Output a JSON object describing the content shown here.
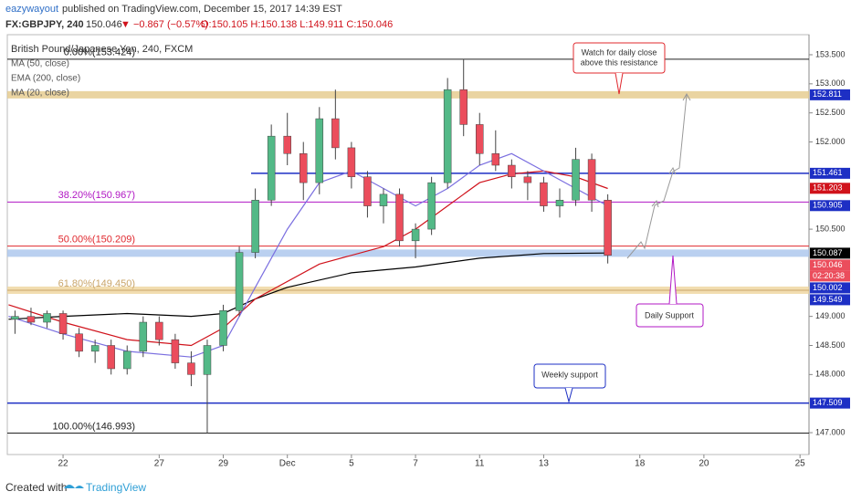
{
  "header": {
    "user": "eazywayout",
    "published": " published on TradingView.com, December 15, 2017 14:39 EST",
    "symbol": "FX:GBPJPY, 240",
    "last": "150.046",
    "change": "▼ −0.867 (−0.57%)",
    "ohlc": "O:150.105 H:150.138 L:149.911 C:150.046"
  },
  "legend": [
    "British Pound/Japanese Yen, 240, FXCM",
    "MA (50, close)",
    "EMA (200, close)",
    "MA (20, close)"
  ],
  "callouts": [
    "Watch for daily close",
    "above this resistance",
    "Daily Support",
    "Weekly support"
  ],
  "footer": {
    "created": "Created with",
    "brand": "TradingView"
  },
  "chart_data": {
    "type": "candlestick",
    "xlim": [
      -1.74,
      23.28
    ],
    "xticks": [
      {
        "value": 0,
        "label": "22"
      },
      {
        "value": 3,
        "label": "27"
      },
      {
        "value": 5,
        "label": "29"
      },
      {
        "value": 7,
        "label": "Dec"
      },
      {
        "value": 9,
        "label": "5"
      },
      {
        "value": 11,
        "label": "7"
      },
      {
        "value": 13,
        "label": "11"
      },
      {
        "value": 15,
        "label": "13"
      },
      {
        "value": 18,
        "label": "18"
      },
      {
        "value": 20,
        "label": "20"
      },
      {
        "value": 23,
        "label": "25"
      }
    ],
    "ylim": [
      146.624,
      153.845
    ],
    "yticks": [
      {
        "value": 153.5,
        "label": "153.500"
      },
      {
        "value": 153,
        "label": "153.000"
      },
      {
        "value": 152.5,
        "label": "152.500"
      },
      {
        "value": 152,
        "label": "152.000"
      },
      {
        "value": 150.5,
        "label": "150.500"
      },
      {
        "value": 149,
        "label": "149.000"
      },
      {
        "value": 148.5,
        "label": "148.500"
      },
      {
        "value": 148,
        "label": "148.000"
      },
      {
        "value": 147,
        "label": "147.000"
      }
    ],
    "up_color": "#53b987",
    "down_color": "#eb4d5c",
    "x": [
      -1.5,
      -1,
      -0.5,
      0,
      0.5,
      1,
      1.5,
      2,
      2.5,
      3,
      3.5,
      4,
      4.5,
      5,
      5.5,
      6,
      6.5,
      7,
      7.5,
      8,
      8.5,
      9,
      9.5,
      10,
      10.5,
      11,
      11.5,
      12,
      12.5,
      13,
      13.5,
      14,
      14.5,
      15,
      15.5,
      16,
      16.5,
      17
    ],
    "open": [
      148.95,
      149.0,
      148.9,
      149.05,
      148.7,
      148.4,
      148.5,
      148.1,
      148.4,
      148.9,
      148.6,
      148.2,
      148.0,
      148.5,
      149.1,
      150.1,
      151.0,
      152.1,
      151.8,
      151.3,
      152.4,
      151.9,
      151.4,
      150.9,
      151.1,
      150.3,
      150.5,
      151.3,
      152.9,
      152.3,
      151.8,
      151.6,
      151.4,
      151.3,
      150.9,
      151.0,
      151.7,
      151.0
    ],
    "high": [
      149.1,
      149.15,
      149.1,
      149.1,
      148.8,
      148.6,
      148.6,
      148.5,
      149.0,
      149.0,
      148.7,
      148.4,
      148.6,
      149.2,
      150.2,
      151.2,
      152.3,
      152.5,
      152.0,
      152.6,
      152.9,
      152.0,
      151.5,
      151.2,
      151.2,
      150.6,
      151.4,
      153.1,
      153.424,
      152.5,
      152.2,
      151.7,
      151.5,
      151.4,
      151.2,
      151.9,
      151.8,
      151.1
    ],
    "low": [
      148.7,
      148.85,
      148.8,
      148.6,
      148.3,
      148.2,
      148.0,
      148.0,
      148.3,
      148.5,
      148.1,
      147.8,
      146.99,
      148.4,
      149.0,
      150.0,
      150.9,
      151.6,
      151.0,
      151.1,
      151.7,
      151.2,
      150.7,
      150.6,
      150.2,
      150.0,
      150.4,
      151.2,
      152.1,
      151.6,
      151.5,
      151.2,
      151.0,
      150.8,
      150.7,
      150.9,
      150.8,
      149.91
    ],
    "close": [
      149.0,
      148.9,
      149.05,
      148.7,
      148.4,
      148.5,
      148.1,
      148.4,
      148.9,
      148.6,
      148.2,
      148.0,
      148.5,
      149.1,
      150.1,
      151.0,
      152.1,
      151.8,
      151.3,
      152.4,
      151.9,
      151.4,
      150.9,
      151.1,
      150.3,
      150.5,
      151.3,
      152.9,
      152.3,
      151.8,
      151.6,
      151.4,
      151.3,
      150.9,
      151.0,
      151.7,
      151.0,
      150.05
    ],
    "lines": [
      {
        "name": "EMA (200, close)",
        "color": "#000000",
        "x": [
          -1.7,
          0,
          2,
          4,
          5,
          6,
          7,
          9,
          11,
          13,
          15,
          17
        ],
        "values": [
          148.95,
          149.0,
          149.05,
          149.0,
          149.05,
          149.3,
          149.5,
          149.75,
          149.85,
          150.0,
          150.08,
          150.09
        ]
      },
      {
        "name": "MA (50, close)",
        "color": "#d0121b",
        "x": [
          -1.7,
          0,
          2,
          4,
          5,
          6,
          8,
          10,
          11,
          12,
          13,
          14,
          15,
          16,
          17
        ],
        "values": [
          149.2,
          148.9,
          148.6,
          148.5,
          148.8,
          149.3,
          149.9,
          150.2,
          150.5,
          150.9,
          151.3,
          151.45,
          151.5,
          151.4,
          151.2
        ]
      },
      {
        "name": "MA (20, close)",
        "color": "#7b6fe0",
        "x": [
          -1.7,
          0,
          2,
          4,
          5,
          6,
          7,
          8,
          9,
          10,
          11,
          12,
          13,
          14,
          15,
          16,
          17
        ],
        "values": [
          149.0,
          148.7,
          148.4,
          148.3,
          148.5,
          149.5,
          150.5,
          151.3,
          151.5,
          151.2,
          150.9,
          151.2,
          151.6,
          151.8,
          151.5,
          151.2,
          150.9
        ]
      }
    ],
    "levels": [
      {
        "label": "0.00%(153.424)",
        "value": 153.424,
        "color": "#222222"
      },
      {
        "label": "38.20%(150.967)",
        "value": 150.967,
        "color": "#b117c4"
      },
      {
        "label": "50.00%(150.209)",
        "value": 150.209,
        "color": "#e0282e"
      },
      {
        "label": "61.80%(149.450)",
        "value": 149.45,
        "color": "#c9a56a"
      },
      {
        "label": "100.00%(146.993)",
        "value": 146.993,
        "color": "#222222"
      }
    ],
    "hlines": [
      {
        "value": 151.461,
        "color": "#1d2fc4"
      },
      {
        "value": 147.509,
        "color": "#1d2fc4"
      }
    ],
    "bands": [
      {
        "value": 152.811,
        "color": "#e5c98a"
      },
      {
        "value": 149.45,
        "color": "#efd59c"
      },
      {
        "value": 150.087,
        "color": "#a9c4ec"
      }
    ],
    "price_labels": [
      {
        "label": "152.811",
        "value": 152.811,
        "color": "#1d2fc4"
      },
      {
        "label": "151.461",
        "value": 151.461,
        "color": "#1d2fc4"
      },
      {
        "label": "151.203",
        "value": 151.203,
        "color": "#d0121b"
      },
      {
        "label": "150.905",
        "value": 150.905,
        "color": "#1d2fc4"
      },
      {
        "label": "150.087",
        "value": 150.087,
        "color": "#000000"
      },
      {
        "label": "150.046",
        "value": 150.046,
        "color": "#eb4d5c"
      },
      {
        "label": "150.002",
        "value": 150.002,
        "color": "#1d2fc4"
      },
      {
        "label": "149.549",
        "value": 149.549,
        "color": "#1d2fc4"
      },
      {
        "label": "147.509",
        "value": 147.509,
        "color": "#1d2fc4"
      }
    ],
    "countdown": "02:20:38"
  }
}
